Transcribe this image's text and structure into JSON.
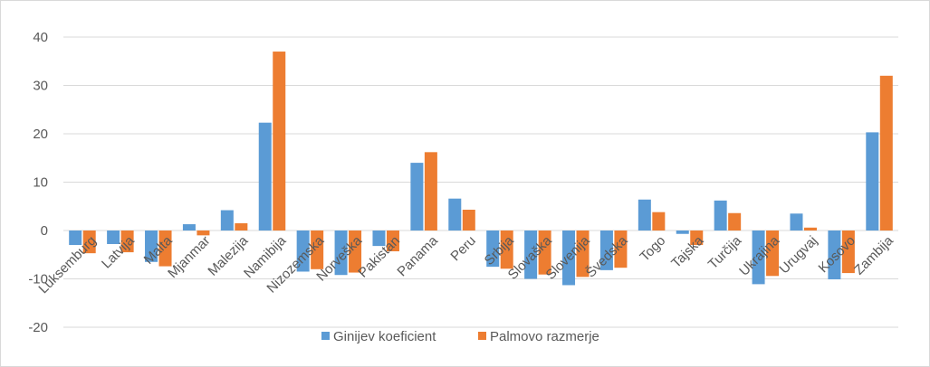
{
  "chart_data": {
    "type": "bar",
    "title": "",
    "xlabel": "",
    "ylabel": "",
    "ylim": [
      -20,
      40
    ],
    "yticks": [
      -20,
      -10,
      0,
      10,
      20,
      30,
      40
    ],
    "grid": true,
    "legend_position": "bottom",
    "categories": [
      "Luksemburg",
      "Latvija",
      "Malta",
      "Mjanmar",
      "Malezija",
      "Namibija",
      "Nizozemska",
      "Norveška",
      "Pakistan",
      "Panama",
      "Peru",
      "Srbija",
      "Slovaška",
      "Slovenija",
      "Švedska",
      "Togo",
      "Tajska",
      "Turčija",
      "Ukrajina",
      "Urugvaj",
      "Kosovo",
      "Zambija"
    ],
    "series": [
      {
        "name": "Ginijev koeficient",
        "color": "#5b9bd5",
        "values": [
          -3.0,
          -2.8,
          -6.5,
          1.3,
          4.2,
          22.3,
          -8.5,
          -9.2,
          -3.2,
          14.0,
          6.6,
          -7.5,
          -10.0,
          -11.3,
          -8.2,
          6.4,
          -0.7,
          6.2,
          -11.1,
          3.5,
          -10.1,
          20.3
        ]
      },
      {
        "name": "Palmovo razmerje",
        "color": "#ed7d31",
        "values": [
          -4.7,
          -4.5,
          -7.4,
          -1.0,
          1.5,
          37.0,
          -8.0,
          -8.7,
          -4.3,
          16.2,
          4.3,
          -7.9,
          -9.1,
          -9.6,
          -7.7,
          3.8,
          -3.0,
          3.6,
          -9.4,
          0.6,
          -8.8,
          32.0
        ]
      }
    ]
  }
}
